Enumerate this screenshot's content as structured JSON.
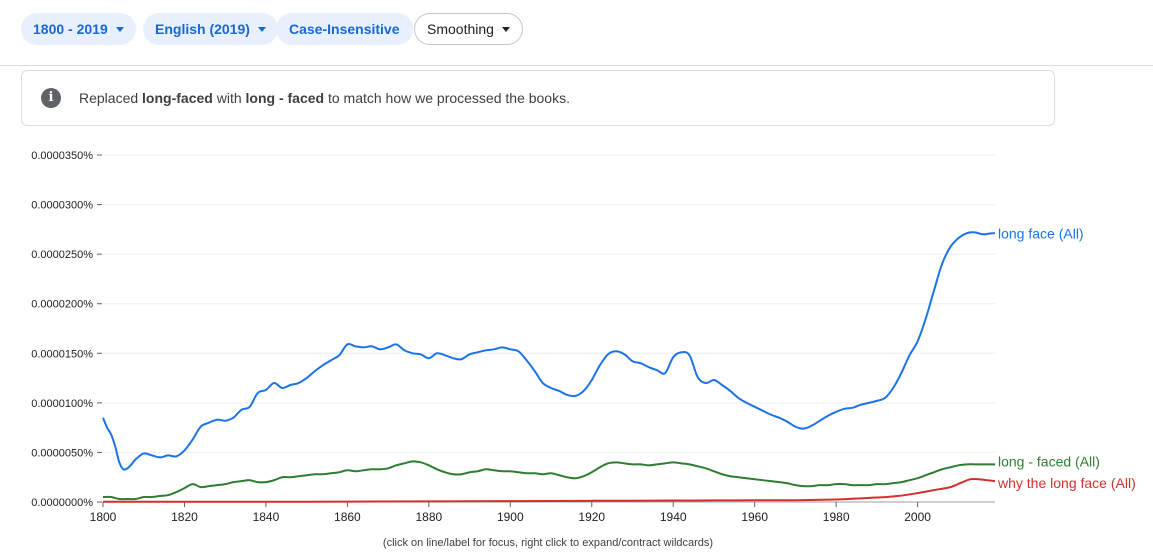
{
  "toolbar": {
    "year_range": "1800 - 2019",
    "corpus": "English (2019)",
    "case": "Case-Insensitive",
    "smoothing": "Smoothing"
  },
  "notice": {
    "icon": "info-icon",
    "prefix": "Replaced ",
    "original": "long-faced",
    "middle": " with ",
    "replacement": "long - faced",
    "suffix": " to match how we processed the books."
  },
  "footer": "(click on line/label for focus, right click to expand/contract wildcards)",
  "colors": {
    "blue": "#1a73e8",
    "green": "#2e7d32",
    "red": "#d32f2f",
    "grid": "#eeeeee"
  },
  "chart_data": {
    "type": "line",
    "xlim": [
      1800,
      2019
    ],
    "ylim": [
      0,
      3.5e-07
    ],
    "y_ticks": [
      {
        "v": 0,
        "label": "0.0000000%"
      },
      {
        "v": 5e-08,
        "label": "0.0000050%"
      },
      {
        "v": 1e-07,
        "label": "0.0000100%"
      },
      {
        "v": 1.5e-07,
        "label": "0.0000150%"
      },
      {
        "v": 2e-07,
        "label": "0.0000200%"
      },
      {
        "v": 2.5e-07,
        "label": "0.0000250%"
      },
      {
        "v": 3e-07,
        "label": "0.0000300%"
      },
      {
        "v": 3.5e-07,
        "label": "0.0000350%"
      }
    ],
    "x_ticks": [
      1800,
      1820,
      1840,
      1860,
      1880,
      1900,
      1920,
      1940,
      1960,
      1980,
      2000
    ],
    "grid": true,
    "legend": "inline-right",
    "series": [
      {
        "name": "long face (All)",
        "color": "#1a73e8",
        "x": [
          1800,
          1801,
          1802,
          1803,
          1804,
          1805,
          1806,
          1807,
          1808,
          1810,
          1812,
          1814,
          1816,
          1818,
          1820,
          1822,
          1824,
          1826,
          1828,
          1830,
          1832,
          1834,
          1836,
          1838,
          1840,
          1842,
          1844,
          1846,
          1848,
          1850,
          1852,
          1854,
          1856,
          1858,
          1860,
          1862,
          1864,
          1866,
          1868,
          1870,
          1872,
          1874,
          1876,
          1878,
          1880,
          1882,
          1884,
          1886,
          1888,
          1890,
          1892,
          1894,
          1896,
          1898,
          1900,
          1902,
          1904,
          1906,
          1908,
          1910,
          1912,
          1914,
          1916,
          1918,
          1920,
          1922,
          1924,
          1926,
          1928,
          1930,
          1932,
          1934,
          1936,
          1938,
          1940,
          1942,
          1944,
          1946,
          1948,
          1950,
          1952,
          1954,
          1956,
          1958,
          1960,
          1962,
          1964,
          1966,
          1968,
          1970,
          1972,
          1974,
          1976,
          1978,
          1980,
          1982,
          1984,
          1986,
          1988,
          1990,
          1992,
          1994,
          1996,
          1998,
          2000,
          2002,
          2004,
          2006,
          2008,
          2010,
          2012,
          2014,
          2016,
          2018,
          2019
        ],
        "values": [
          8.5e-08,
          7.5e-08,
          6.8e-08,
          5.6e-08,
          4e-08,
          3.3e-08,
          3.4e-08,
          3.8e-08,
          4.3e-08,
          4.9e-08,
          4.7e-08,
          4.5e-08,
          4.7e-08,
          4.6e-08,
          5.2e-08,
          6.3e-08,
          7.6e-08,
          8e-08,
          8.3e-08,
          8.2e-08,
          8.5e-08,
          9.3e-08,
          9.6e-08,
          1.1e-07,
          1.13e-07,
          1.2e-07,
          1.15e-07,
          1.18e-07,
          1.2e-07,
          1.25e-07,
          1.32e-07,
          1.38e-07,
          1.43e-07,
          1.48e-07,
          1.59e-07,
          1.57e-07,
          1.56e-07,
          1.57e-07,
          1.54e-07,
          1.56e-07,
          1.59e-07,
          1.53e-07,
          1.5e-07,
          1.49e-07,
          1.45e-07,
          1.5e-07,
          1.48e-07,
          1.45e-07,
          1.44e-07,
          1.49e-07,
          1.51e-07,
          1.53e-07,
          1.54e-07,
          1.56e-07,
          1.54e-07,
          1.52e-07,
          1.43e-07,
          1.32e-07,
          1.2e-07,
          1.15e-07,
          1.12e-07,
          1.08e-07,
          1.07e-07,
          1.12e-07,
          1.23e-07,
          1.38e-07,
          1.49e-07,
          1.52e-07,
          1.49e-07,
          1.42e-07,
          1.4e-07,
          1.36e-07,
          1.33e-07,
          1.3e-07,
          1.46e-07,
          1.51e-07,
          1.48e-07,
          1.26e-07,
          1.2e-07,
          1.23e-07,
          1.18e-07,
          1.12e-07,
          1.05e-07,
          1e-07,
          9.6e-08,
          9.2e-08,
          8.8e-08,
          8.5e-08,
          8.1e-08,
          7.6e-08,
          7.4e-08,
          7.7e-08,
          8.2e-08,
          8.7e-08,
          9.1e-08,
          9.4e-08,
          9.5e-08,
          9.8e-08,
          1e-07,
          1.02e-07,
          1.05e-07,
          1.15e-07,
          1.3e-07,
          1.48e-07,
          1.62e-07,
          1.85e-07,
          2.13e-07,
          2.4e-07,
          2.57e-07,
          2.66e-07,
          2.71e-07,
          2.72e-07,
          2.7e-07,
          2.71e-07,
          2.71e-07
        ]
      },
      {
        "name": "long - faced (All)",
        "color": "#2e7d32",
        "x": [
          1800,
          1802,
          1804,
          1806,
          1808,
          1810,
          1812,
          1814,
          1816,
          1818,
          1820,
          1822,
          1824,
          1826,
          1828,
          1830,
          1832,
          1834,
          1836,
          1838,
          1840,
          1842,
          1844,
          1846,
          1848,
          1850,
          1852,
          1854,
          1856,
          1858,
          1860,
          1862,
          1864,
          1866,
          1868,
          1870,
          1872,
          1874,
          1876,
          1878,
          1880,
          1882,
          1884,
          1886,
          1888,
          1890,
          1892,
          1894,
          1896,
          1898,
          1900,
          1902,
          1904,
          1906,
          1908,
          1910,
          1912,
          1914,
          1916,
          1918,
          1920,
          1922,
          1924,
          1926,
          1928,
          1930,
          1932,
          1934,
          1936,
          1938,
          1940,
          1942,
          1944,
          1946,
          1948,
          1950,
          1952,
          1954,
          1956,
          1958,
          1960,
          1962,
          1964,
          1966,
          1968,
          1970,
          1972,
          1974,
          1976,
          1978,
          1980,
          1982,
          1984,
          1986,
          1988,
          1990,
          1992,
          1994,
          1996,
          1998,
          2000,
          2002,
          2004,
          2006,
          2008,
          2010,
          2012,
          2014,
          2016,
          2018,
          2019
        ],
        "values": [
          5e-09,
          5e-09,
          3e-09,
          3e-09,
          3e-09,
          5e-09,
          5e-09,
          6e-09,
          7e-09,
          1e-08,
          1.4e-08,
          1.8e-08,
          1.5e-08,
          1.6e-08,
          1.7e-08,
          1.8e-08,
          2e-08,
          2.1e-08,
          2.2e-08,
          2e-08,
          2e-08,
          2.2e-08,
          2.5e-08,
          2.5e-08,
          2.6e-08,
          2.7e-08,
          2.8e-08,
          2.8e-08,
          2.9e-08,
          3e-08,
          3.2e-08,
          3.1e-08,
          3.2e-08,
          3.3e-08,
          3.3e-08,
          3.4e-08,
          3.7e-08,
          3.9e-08,
          4.1e-08,
          4e-08,
          3.7e-08,
          3.3e-08,
          3e-08,
          2.8e-08,
          2.8e-08,
          3e-08,
          3.1e-08,
          3.3e-08,
          3.2e-08,
          3.1e-08,
          3.1e-08,
          3e-08,
          2.9e-08,
          2.9e-08,
          2.8e-08,
          2.9e-08,
          2.7e-08,
          2.5e-08,
          2.4e-08,
          2.6e-08,
          3e-08,
          3.5e-08,
          3.9e-08,
          4e-08,
          3.9e-08,
          3.8e-08,
          3.8e-08,
          3.7e-08,
          3.8e-08,
          3.9e-08,
          4e-08,
          3.9e-08,
          3.8e-08,
          3.6e-08,
          3.4e-08,
          3.1e-08,
          2.8e-08,
          2.6e-08,
          2.5e-08,
          2.4e-08,
          2.3e-08,
          2.2e-08,
          2.1e-08,
          2e-08,
          1.9e-08,
          1.7e-08,
          1.6e-08,
          1.6e-08,
          1.7e-08,
          1.7e-08,
          1.8e-08,
          1.8e-08,
          1.7e-08,
          1.7e-08,
          1.7e-08,
          1.8e-08,
          1.8e-08,
          1.9e-08,
          2e-08,
          2.2e-08,
          2.4e-08,
          2.7e-08,
          3e-08,
          3.3e-08,
          3.5e-08,
          3.7e-08,
          3.8e-08,
          3.8e-08,
          3.8e-08,
          3.8e-08,
          3.8e-08
        ]
      },
      {
        "name": "why the long face (All)",
        "color": "#d32f2f",
        "x": [
          1800,
          1810,
          1820,
          1830,
          1840,
          1850,
          1860,
          1870,
          1880,
          1890,
          1900,
          1910,
          1920,
          1930,
          1940,
          1950,
          1960,
          1970,
          1980,
          1985,
          1990,
          1995,
          2000,
          2004,
          2008,
          2011,
          2013,
          2015,
          2017,
          2019
        ],
        "values": [
          3e-10,
          3e-10,
          3e-10,
          3e-10,
          3e-10,
          3e-10,
          4e-10,
          5e-10,
          6e-10,
          8e-10,
          9e-10,
          1e-09,
          1.2e-09,
          1.3e-09,
          1.5e-09,
          1.6e-09,
          1.7e-09,
          1.8e-09,
          2.5e-09,
          3.5e-09,
          4.5e-09,
          6e-09,
          9e-09,
          1.2e-08,
          1.5e-08,
          2e-08,
          2.3e-08,
          2.3e-08,
          2.2e-08,
          2.1e-08
        ]
      }
    ]
  }
}
